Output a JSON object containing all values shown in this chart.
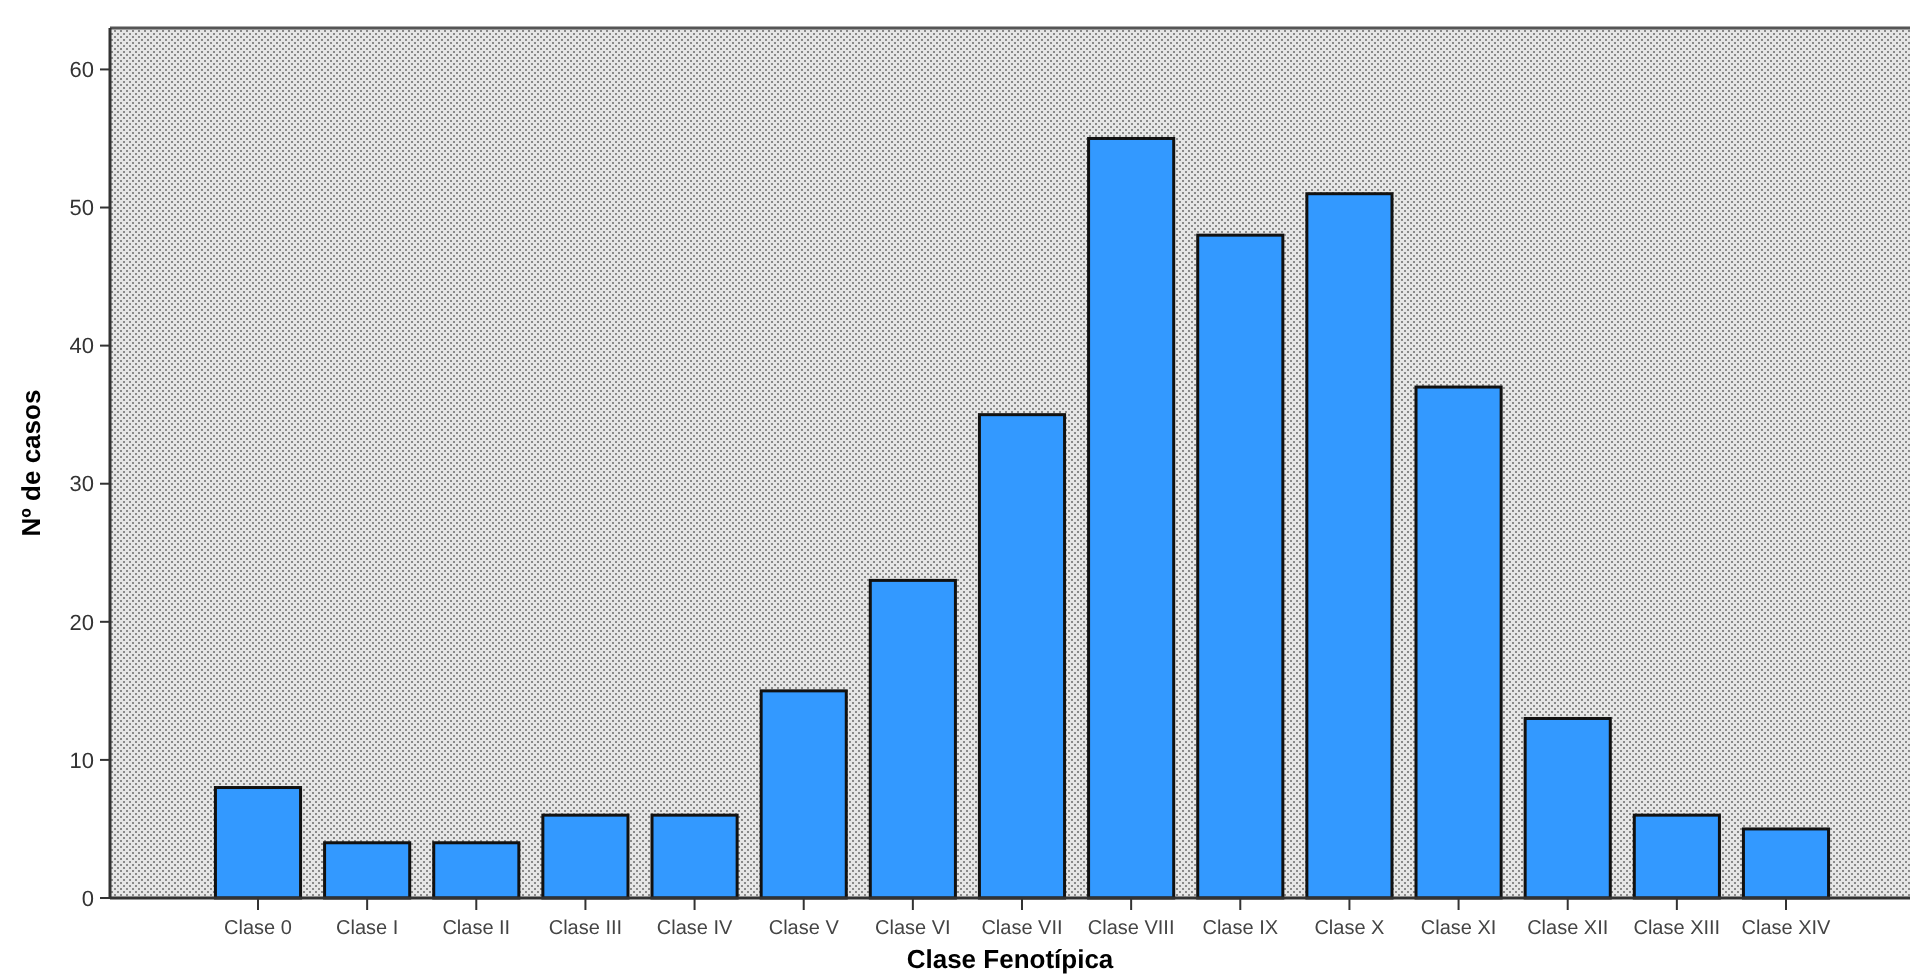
{
  "chart_data": {
    "type": "bar",
    "xlabel": "Clase Fenotípica",
    "ylabel": "Nº de casos",
    "categories": [
      "Clase 0",
      "Clase I",
      "Clase II",
      "Clase III",
      "Clase IV",
      "Clase V",
      "Clase VI",
      "Clase VII",
      "Clase VIII",
      "Clase IX",
      "Clase X",
      "Clase XI",
      "Clase XII",
      "Clase XIII",
      "Clase XIV"
    ],
    "values": [
      8,
      4,
      4,
      6,
      6,
      15,
      23,
      35,
      55,
      48,
      51,
      37,
      13,
      6,
      5
    ],
    "color": "#3399ff",
    "ylim": [
      0,
      63
    ],
    "yticks": [
      0,
      10,
      20,
      30,
      40,
      50,
      60
    ],
    "grid": false
  }
}
